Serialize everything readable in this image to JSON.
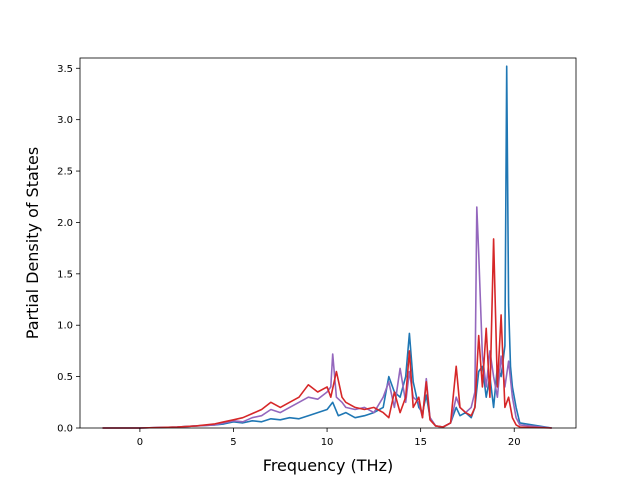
{
  "chart_data": {
    "type": "line",
    "xlabel": "Frequency (THz)",
    "ylabel": "Partial Density of States",
    "xlim": [
      -3.2,
      23.3
    ],
    "ylim": [
      0,
      3.6
    ],
    "xticks": [
      0,
      5,
      10,
      15,
      20
    ],
    "yticks": [
      0.0,
      0.5,
      1.0,
      1.5,
      2.0,
      2.5,
      3.0,
      3.5
    ],
    "xtick_labels": [
      "0",
      "5",
      "10",
      "15",
      "20"
    ],
    "ytick_labels": [
      "0.0",
      "0.5",
      "1.0",
      "1.5",
      "2.0",
      "2.5",
      "3.0",
      "3.5"
    ],
    "grid": false,
    "series": [
      {
        "color": "#1f77b4",
        "x": [
          -2,
          0,
          1,
          2,
          3,
          4,
          4.5,
          5,
          5.5,
          6,
          6.5,
          7,
          7.5,
          8,
          8.5,
          9,
          9.5,
          10,
          10.3,
          10.6,
          11,
          11.5,
          12,
          12.5,
          13,
          13.3,
          13.6,
          13.9,
          14.2,
          14.4,
          14.6,
          14.9,
          15.1,
          15.3,
          15.5,
          15.8,
          16.2,
          16.6,
          16.9,
          17.1,
          17.4,
          17.7,
          17.9,
          18.1,
          18.3,
          18.5,
          18.7,
          18.9,
          19.1,
          19.3,
          19.5,
          19.6,
          19.7,
          19.8,
          19.9,
          20.1,
          20.3,
          22
        ],
        "y": [
          0,
          0,
          0.005,
          0.01,
          0.02,
          0.03,
          0.04,
          0.06,
          0.05,
          0.07,
          0.06,
          0.09,
          0.08,
          0.1,
          0.09,
          0.12,
          0.15,
          0.18,
          0.25,
          0.12,
          0.15,
          0.1,
          0.12,
          0.15,
          0.2,
          0.5,
          0.35,
          0.3,
          0.5,
          0.92,
          0.45,
          0.2,
          0.15,
          0.32,
          0.1,
          0.02,
          0.01,
          0.05,
          0.2,
          0.12,
          0.15,
          0.1,
          0.2,
          0.55,
          0.6,
          0.3,
          0.5,
          0.2,
          0.6,
          0.5,
          0.8,
          3.52,
          1.2,
          0.6,
          0.4,
          0.2,
          0.05,
          0
        ]
      },
      {
        "color": "#9467bd",
        "x": [
          -2,
          0,
          1,
          2,
          3,
          4,
          4.5,
          5,
          5.5,
          6,
          6.5,
          7,
          7.5,
          8,
          8.5,
          9,
          9.5,
          10,
          10.2,
          10.3,
          10.5,
          10.8,
          11,
          11.5,
          12,
          12.5,
          13,
          13.3,
          13.6,
          13.9,
          14.2,
          14.4,
          14.6,
          14.9,
          15.1,
          15.3,
          15.5,
          15.8,
          16.2,
          16.6,
          16.9,
          17.1,
          17.4,
          17.7,
          17.9,
          18.0,
          18.1,
          18.3,
          18.5,
          18.7,
          18.9,
          19.1,
          19.3,
          19.5,
          19.7,
          19.9,
          20.1,
          20.3,
          22
        ],
        "y": [
          0,
          0,
          0.005,
          0.01,
          0.02,
          0.03,
          0.05,
          0.07,
          0.06,
          0.1,
          0.12,
          0.18,
          0.15,
          0.2,
          0.25,
          0.3,
          0.28,
          0.35,
          0.4,
          0.72,
          0.3,
          0.25,
          0.2,
          0.18,
          0.2,
          0.15,
          0.3,
          0.45,
          0.2,
          0.58,
          0.25,
          0.55,
          0.3,
          0.25,
          0.1,
          0.48,
          0.1,
          0.02,
          0.01,
          0.05,
          0.3,
          0.2,
          0.15,
          0.2,
          0.35,
          2.15,
          1.7,
          0.7,
          0.4,
          0.75,
          0.5,
          0.3,
          0.7,
          0.4,
          0.65,
          0.3,
          0.1,
          0.03,
          0
        ]
      },
      {
        "color": "#d62728",
        "x": [
          -2,
          0,
          1,
          2,
          3,
          4,
          4.5,
          5,
          5.5,
          6,
          6.5,
          7,
          7.5,
          8,
          8.5,
          9,
          9.5,
          10,
          10.2,
          10.5,
          10.8,
          11,
          11.5,
          12,
          12.5,
          13,
          13.3,
          13.6,
          13.9,
          14.2,
          14.4,
          14.6,
          14.9,
          15.1,
          15.3,
          15.5,
          15.8,
          16.2,
          16.6,
          16.9,
          17.1,
          17.4,
          17.7,
          17.9,
          18.1,
          18.3,
          18.5,
          18.7,
          18.9,
          19.1,
          19.3,
          19.5,
          19.7,
          19.9,
          20.1,
          20.3,
          22
        ],
        "y": [
          0,
          0,
          0.005,
          0.01,
          0.02,
          0.04,
          0.06,
          0.08,
          0.1,
          0.14,
          0.18,
          0.25,
          0.2,
          0.25,
          0.3,
          0.42,
          0.35,
          0.4,
          0.3,
          0.55,
          0.3,
          0.25,
          0.2,
          0.18,
          0.2,
          0.15,
          0.1,
          0.35,
          0.15,
          0.3,
          0.75,
          0.2,
          0.3,
          0.1,
          0.45,
          0.08,
          0.02,
          0.01,
          0.05,
          0.6,
          0.2,
          0.15,
          0.12,
          0.2,
          0.9,
          0.4,
          0.97,
          0.3,
          1.84,
          0.4,
          1.1,
          0.2,
          0.3,
          0.1,
          0.03,
          0.01,
          0
        ]
      }
    ]
  }
}
